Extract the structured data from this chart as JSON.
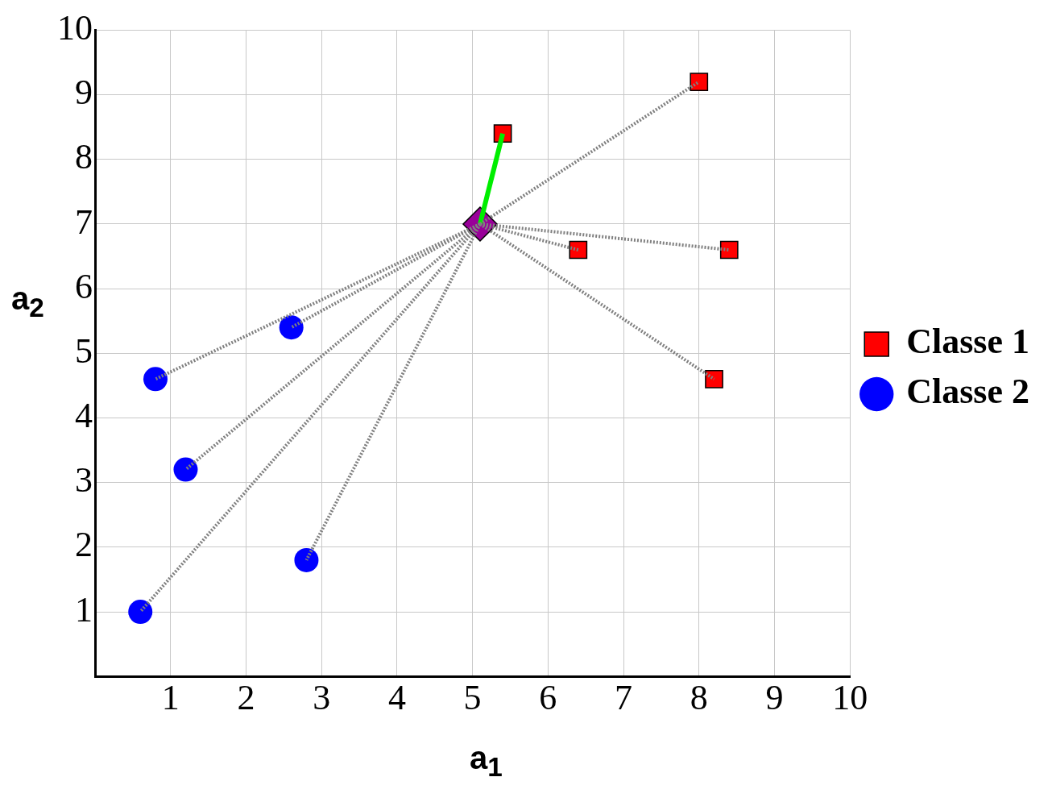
{
  "chart_data": {
    "type": "scatter",
    "xlabel": "a$_{1}$",
    "ylabel": "a$_{2}$",
    "xlim": [
      0,
      10
    ],
    "ylim": [
      0,
      10
    ],
    "xticks": [
      1,
      2,
      3,
      4,
      5,
      6,
      7,
      8,
      9,
      10
    ],
    "yticks": [
      1,
      2,
      3,
      4,
      5,
      6,
      7,
      8,
      9,
      10
    ],
    "grid": true,
    "legend": "right",
    "series": [
      {
        "type": "line",
        "color": "#808080",
        "line_style": "dotted",
        "marker": "none",
        "x": [
          5.1,
          8.0
        ],
        "values": [
          7.0,
          9.2
        ]
      },
      {
        "type": "line",
        "color": "#808080",
        "line_style": "dotted",
        "marker": "none",
        "x": [
          5.1,
          6.4
        ],
        "values": [
          7.0,
          6.6
        ]
      },
      {
        "type": "line",
        "color": "#808080",
        "line_style": "dotted",
        "marker": "none",
        "x": [
          5.1,
          8.4
        ],
        "values": [
          7.0,
          6.6
        ]
      },
      {
        "type": "line",
        "color": "#808080",
        "line_style": "dotted",
        "marker": "none",
        "x": [
          5.1,
          8.2
        ],
        "values": [
          7.0,
          4.6
        ]
      },
      {
        "type": "line",
        "color": "#808080",
        "line_style": "dotted",
        "marker": "none",
        "x": [
          5.1,
          2.6
        ],
        "values": [
          7.0,
          5.4
        ]
      },
      {
        "type": "line",
        "color": "#808080",
        "line_style": "dotted",
        "marker": "none",
        "x": [
          5.1,
          0.8
        ],
        "values": [
          7.0,
          4.6
        ]
      },
      {
        "type": "line",
        "color": "#808080",
        "line_style": "dotted",
        "marker": "none",
        "x": [
          5.1,
          1.2
        ],
        "values": [
          7.0,
          3.2
        ]
      },
      {
        "type": "line",
        "color": "#808080",
        "line_style": "dotted",
        "marker": "none",
        "x": [
          5.1,
          2.8
        ],
        "values": [
          7.0,
          1.8
        ]
      },
      {
        "type": "line",
        "color": "#808080",
        "line_style": "dotted",
        "marker": "none",
        "x": [
          5.1,
          0.6
        ],
        "values": [
          7.0,
          1.0
        ]
      },
      {
        "type": "line",
        "color": "#00ee00",
        "line_style": "solid",
        "marker": "none",
        "x": [
          5.1,
          5.4
        ],
        "values": [
          7.0,
          8.4
        ]
      },
      {
        "name": "Classe 1",
        "type": "scatter",
        "color": "#ff0000",
        "marker": "square",
        "x": [
          5.4,
          8.0,
          6.4,
          8.4,
          8.2
        ],
        "values": [
          8.4,
          9.2,
          6.6,
          6.6,
          4.6
        ]
      },
      {
        "name": "Classe 2",
        "type": "scatter",
        "color": "#0000ff",
        "marker": "circle",
        "x": [
          2.6,
          0.8,
          1.2,
          2.8,
          0.6
        ],
        "values": [
          5.4,
          4.6,
          3.2,
          1.8,
          1.0
        ]
      },
      {
        "type": "scatter",
        "color": "#990099",
        "marker": "diamond",
        "x": [
          5.1
        ],
        "values": [
          7.0
        ]
      }
    ]
  }
}
